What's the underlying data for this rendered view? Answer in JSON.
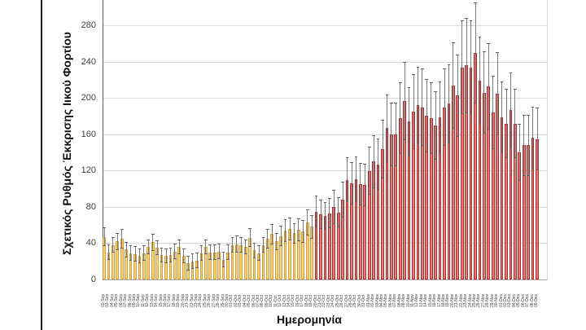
{
  "frame": {
    "left_border": true
  },
  "axes": {
    "y_title": "Σχετικός Ρυθμός Έκκρισης Ιικού Φορτίου",
    "x_title": "Ημερομηνία",
    "y_ticks": [
      0,
      40,
      80,
      120,
      160,
      200,
      240,
      280
    ]
  },
  "colors": {
    "phase1_fill": "#f5d383",
    "phase1_border": "#d5a03a",
    "phase2_fill": "#dc7e76",
    "phase2_border": "#b02b2b",
    "error_bar": "#7a7a7a",
    "gridline": "#d9d9d9"
  },
  "chart_data": {
    "type": "bar",
    "title": "",
    "xlabel": "Ημερομηνία",
    "ylabel": "Σχετικός Ρυθμός Έκκρισης Ιικού Φορτίου",
    "ylim": [
      0,
      300
    ],
    "grid": true,
    "legend": false,
    "error_bars": true,
    "phase2_start_index": 48,
    "phase2_start_category": "20-Oct",
    "categories": [
      "02-Sep",
      "03-Sep",
      "04-Sep",
      "05-Sep",
      "06-Sep",
      "07-Sep",
      "08-Sep",
      "09-Sep",
      "10-Sep",
      "11-Sep",
      "12-Sep",
      "13-Sep",
      "14-Sep",
      "15-Sep",
      "16-Sep",
      "17-Sep",
      "18-Sep",
      "19-Sep",
      "20-Sep",
      "21-Sep",
      "22-Sep",
      "23-Sep",
      "24-Sep",
      "25-Sep",
      "26-Sep",
      "27-Sep",
      "28-Sep",
      "29-Sep",
      "30-Sep",
      "01-Oct",
      "02-Oct",
      "03-Oct",
      "04-Oct",
      "05-Oct",
      "06-Oct",
      "07-Oct",
      "08-Oct",
      "09-Oct",
      "10-Oct",
      "11-Oct",
      "12-Oct",
      "13-Oct",
      "14-Oct",
      "15-Oct",
      "16-Oct",
      "17-Oct",
      "18-Oct",
      "19-Oct",
      "20-Oct",
      "21-Oct",
      "22-Oct",
      "23-Oct",
      "24-Oct",
      "25-Oct",
      "26-Oct",
      "27-Oct",
      "28-Oct",
      "29-Oct",
      "30-Oct",
      "31-Oct",
      "01-Nov",
      "02-Nov",
      "03-Nov",
      "04-Nov",
      "05-Nov",
      "06-Nov",
      "07-Nov",
      "08-Nov",
      "09-Nov",
      "10-Nov",
      "11-Nov",
      "12-Nov",
      "13-Nov",
      "14-Nov",
      "15-Nov",
      "16-Nov",
      "17-Nov",
      "18-Nov",
      "19-Nov",
      "20-Nov",
      "21-Nov",
      "22-Nov",
      "23-Nov",
      "24-Nov",
      "25-Nov",
      "26-Nov",
      "27-Nov",
      "28-Nov",
      "29-Nov",
      "30-Nov",
      "01-Dec",
      "02-Dec",
      "03-Dec",
      "04-Dec",
      "05-Dec",
      "06-Dec",
      "07-Dec",
      "08-Dec",
      "09-Dec"
    ],
    "values": [
      47,
      30,
      38,
      42,
      45,
      33,
      29,
      28,
      26,
      29,
      36,
      41,
      35,
      27,
      26,
      27,
      31,
      36,
      26,
      18,
      20,
      21,
      29,
      36,
      30,
      30,
      31,
      22,
      30,
      38,
      39,
      38,
      36,
      46,
      32,
      29,
      38,
      45,
      50,
      42,
      48,
      54,
      56,
      51,
      55,
      53,
      63,
      58,
      75,
      72,
      70,
      73,
      80,
      74,
      88,
      110,
      106,
      111,
      105,
      104,
      120,
      130,
      127,
      144,
      167,
      160,
      160,
      178,
      197,
      174,
      185,
      192,
      190,
      181,
      178,
      170,
      179,
      190,
      194,
      214,
      203,
      234,
      236,
      234,
      250,
      219,
      206,
      213,
      184,
      205,
      179,
      172,
      187,
      172,
      140,
      148,
      148,
      156,
      155
    ],
    "errors": [
      10,
      8,
      8,
      9,
      10,
      8,
      8,
      8,
      8,
      8,
      8,
      9,
      8,
      8,
      8,
      8,
      8,
      8,
      8,
      8,
      8,
      8,
      8,
      8,
      8,
      8,
      8,
      8,
      8,
      8,
      9,
      8,
      8,
      10,
      8,
      8,
      8,
      10,
      11,
      9,
      11,
      12,
      12,
      11,
      12,
      12,
      14,
      13,
      17,
      16,
      15,
      16,
      18,
      16,
      19,
      24,
      23,
      24,
      23,
      23,
      26,
      29,
      28,
      32,
      37,
      35,
      35,
      39,
      43,
      38,
      41,
      42,
      42,
      40,
      39,
      37,
      39,
      42,
      43,
      47,
      45,
      51,
      52,
      51,
      55,
      48,
      45,
      47,
      40,
      45,
      39,
      38,
      41,
      38,
      31,
      33,
      33,
      34,
      34
    ]
  }
}
